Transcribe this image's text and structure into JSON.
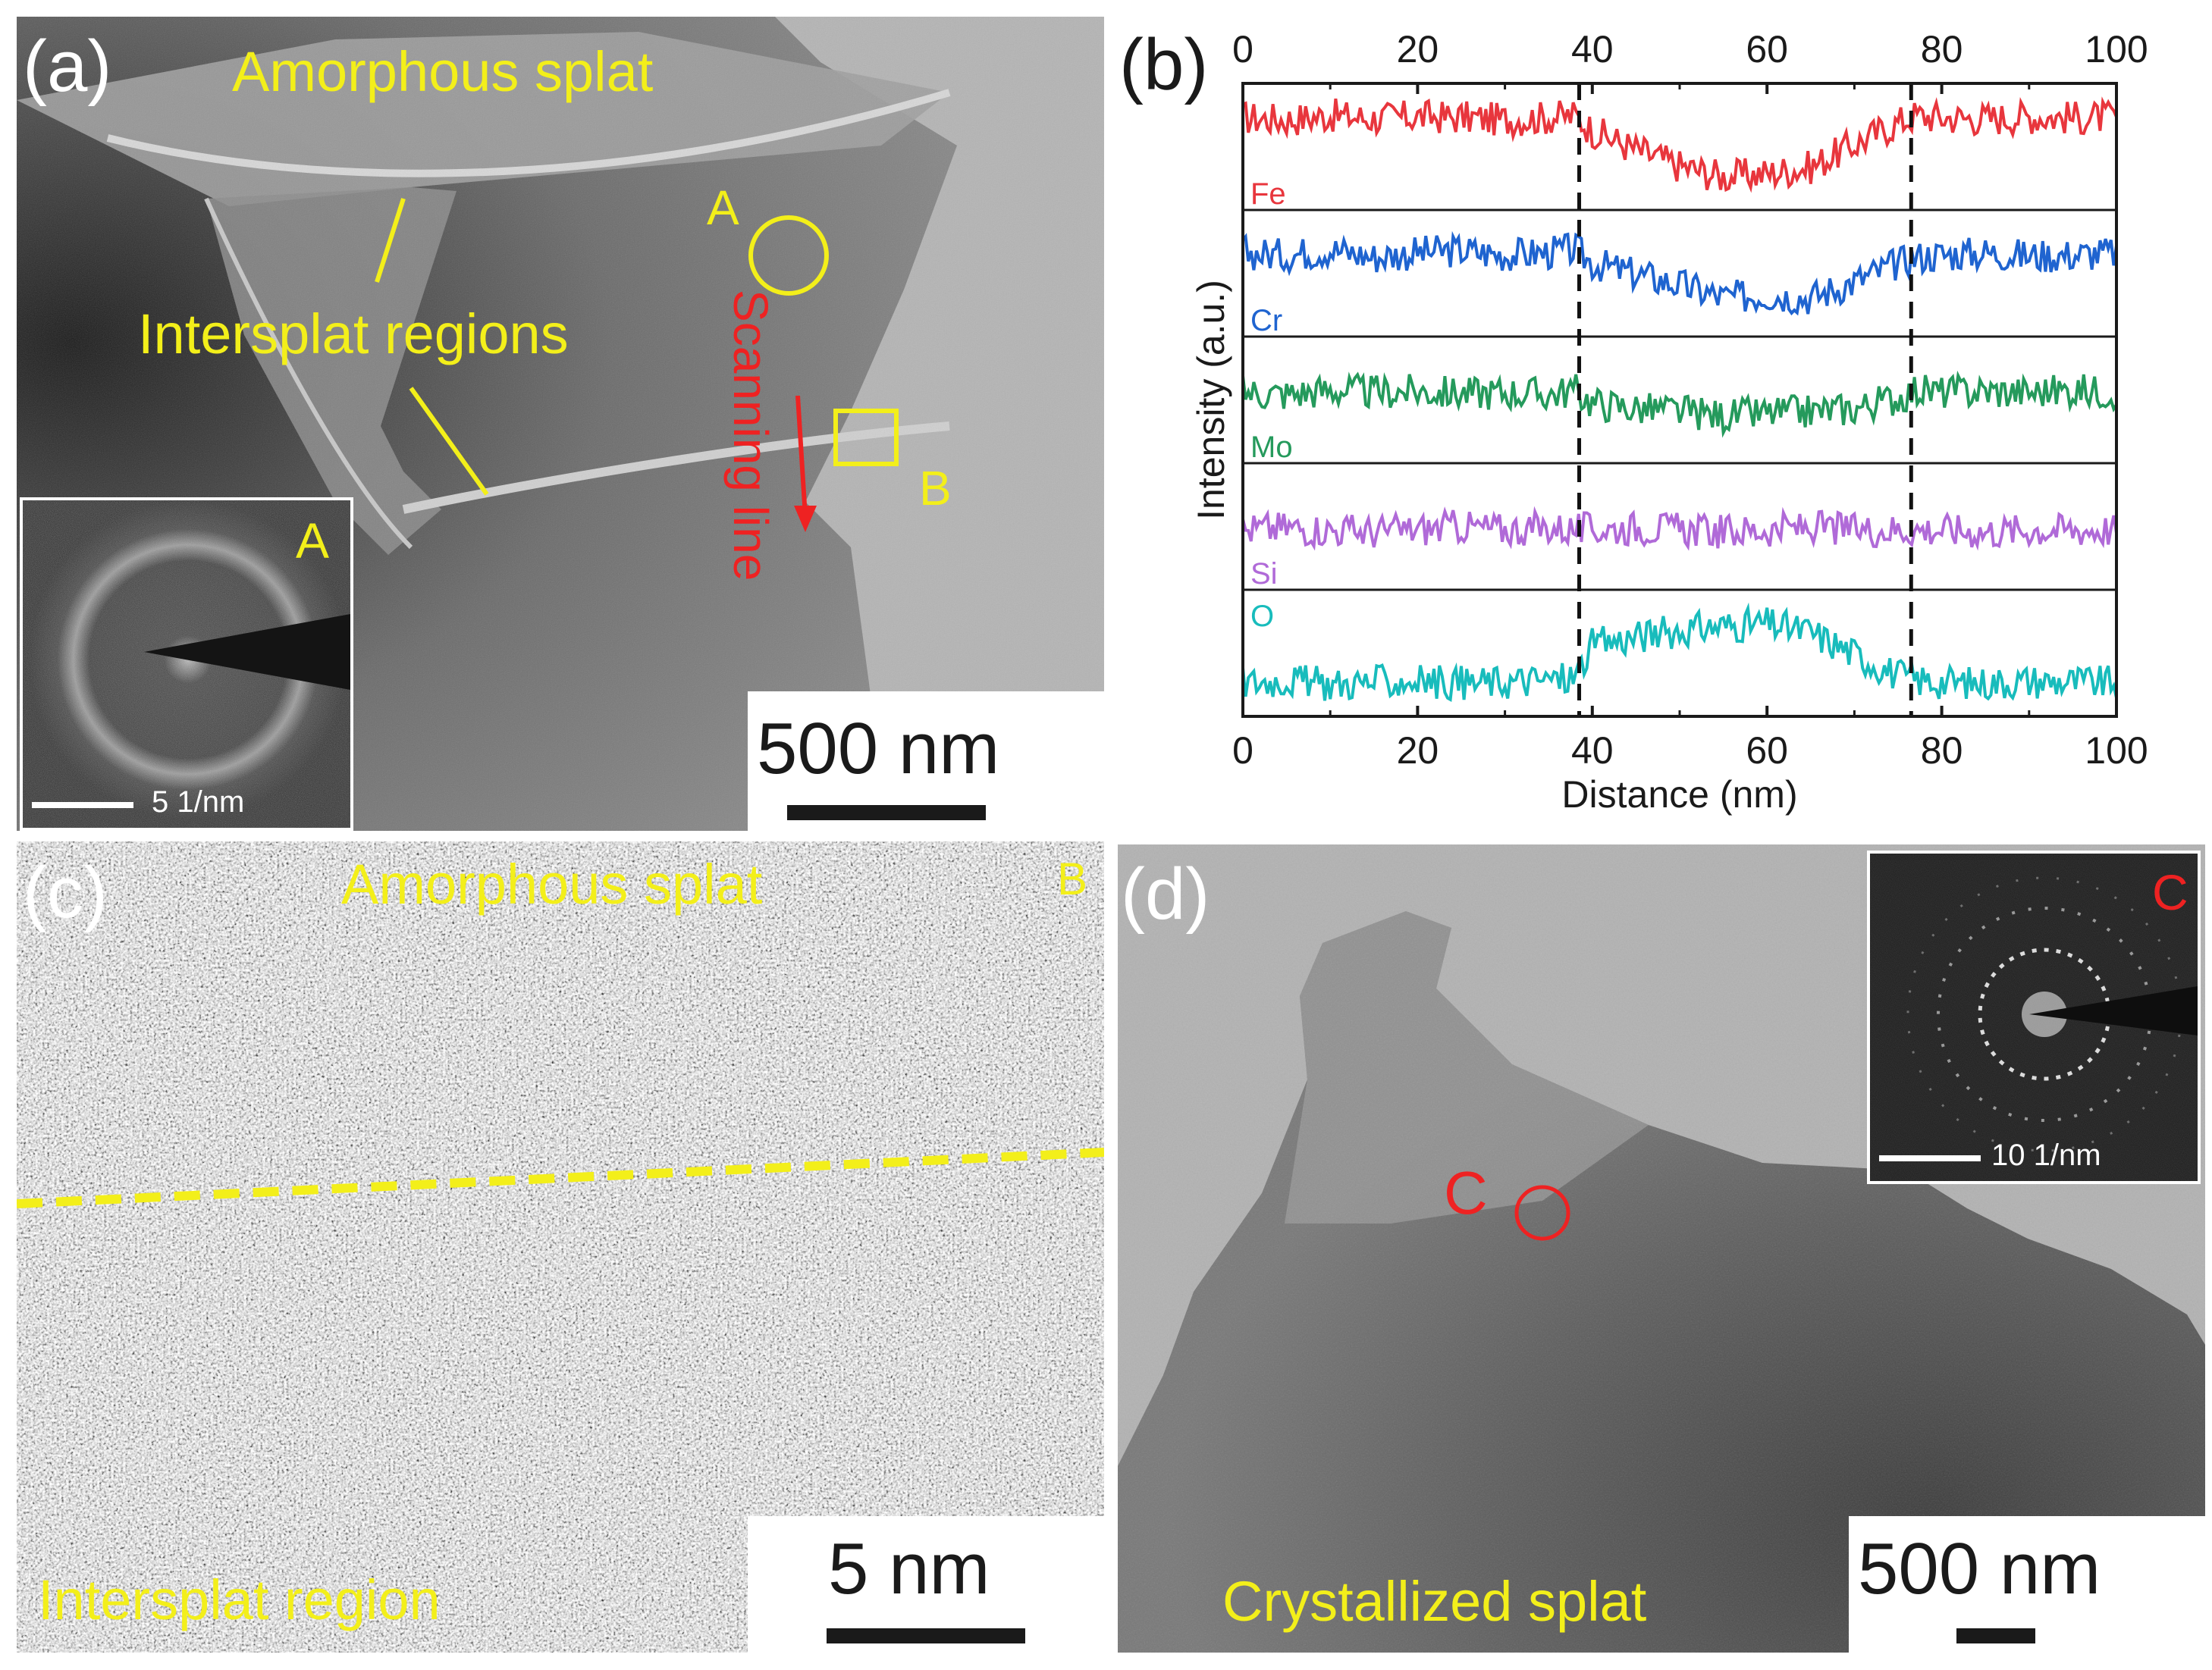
{
  "panel_a": {
    "letter": "(a)",
    "title": "Amorphous splat",
    "regions_label": "Intersplat regions",
    "marker_a": "A",
    "marker_b": "B",
    "scan_label": "Scanning line",
    "scale_label": "500 nm",
    "inset": {
      "letter": "A",
      "scale_label": "5 1/nm"
    }
  },
  "panel_b": {
    "letter": "(b)"
  },
  "panel_c": {
    "letter": "(c)",
    "top_label": "Amorphous splat",
    "bottom_label": "Intersplat region",
    "corner_label": "B",
    "scale_label": "5 nm"
  },
  "panel_d": {
    "letter": "(d)",
    "marker_c": "C",
    "bottom_label": "Crystallized splat",
    "scale_label": "500 nm",
    "inset": {
      "letter": "C",
      "scale_label": "10 1/nm"
    }
  },
  "colors": {
    "annotation_yellow": "#f3ef1a",
    "annotation_red": "#ee2222",
    "Fe": "#e8363d",
    "Cr": "#1f64d0",
    "Mo": "#259a5c",
    "Si": "#b06ad8",
    "O": "#18bcbc"
  },
  "chart_data": {
    "type": "line",
    "xlabel": "Distance (nm)",
    "ylabel": "Intensity (a.u.)",
    "xlim": [
      0,
      100
    ],
    "xticks": [
      0,
      20,
      40,
      60,
      80,
      100
    ],
    "xtick_labels": [
      "0",
      "20",
      "40",
      "60",
      "80",
      "100"
    ],
    "vlines": [
      38.5,
      76.5
    ],
    "grid": false,
    "legend": "none",
    "x": [
      0,
      5,
      10,
      15,
      20,
      25,
      30,
      35,
      38,
      40,
      45,
      50,
      55,
      60,
      65,
      70,
      75,
      77,
      80,
      85,
      90,
      95,
      100
    ],
    "series": [
      {
        "name": "Fe",
        "color": "#e8363d",
        "values": [
          0.8,
          0.78,
          0.82,
          0.79,
          0.81,
          0.8,
          0.78,
          0.8,
          0.82,
          0.68,
          0.5,
          0.35,
          0.25,
          0.28,
          0.34,
          0.55,
          0.75,
          0.82,
          0.8,
          0.79,
          0.81,
          0.8,
          0.8
        ]
      },
      {
        "name": "Cr",
        "color": "#1f64d0",
        "values": [
          0.72,
          0.7,
          0.75,
          0.68,
          0.72,
          0.74,
          0.7,
          0.72,
          0.75,
          0.62,
          0.52,
          0.42,
          0.3,
          0.33,
          0.3,
          0.45,
          0.62,
          0.68,
          0.7,
          0.72,
          0.69,
          0.7,
          0.72
        ]
      },
      {
        "name": "Mo",
        "color": "#259a5c",
        "values": [
          0.6,
          0.58,
          0.62,
          0.6,
          0.61,
          0.59,
          0.6,
          0.58,
          0.62,
          0.5,
          0.45,
          0.42,
          0.38,
          0.4,
          0.42,
          0.45,
          0.55,
          0.62,
          0.6,
          0.61,
          0.6,
          0.62,
          0.6
        ]
      },
      {
        "name": "Si",
        "color": "#b06ad8",
        "values": [
          0.5,
          0.52,
          0.5,
          0.48,
          0.5,
          0.53,
          0.5,
          0.52,
          0.5,
          0.5,
          0.52,
          0.5,
          0.48,
          0.5,
          0.52,
          0.5,
          0.5,
          0.5,
          0.5,
          0.48,
          0.5,
          0.5,
          0.5
        ]
      },
      {
        "name": "O",
        "color": "#18bcbc",
        "values": [
          0.25,
          0.28,
          0.24,
          0.26,
          0.27,
          0.25,
          0.26,
          0.28,
          0.3,
          0.6,
          0.68,
          0.74,
          0.78,
          0.8,
          0.72,
          0.52,
          0.32,
          0.28,
          0.26,
          0.25,
          0.27,
          0.26,
          0.25
        ]
      }
    ]
  }
}
